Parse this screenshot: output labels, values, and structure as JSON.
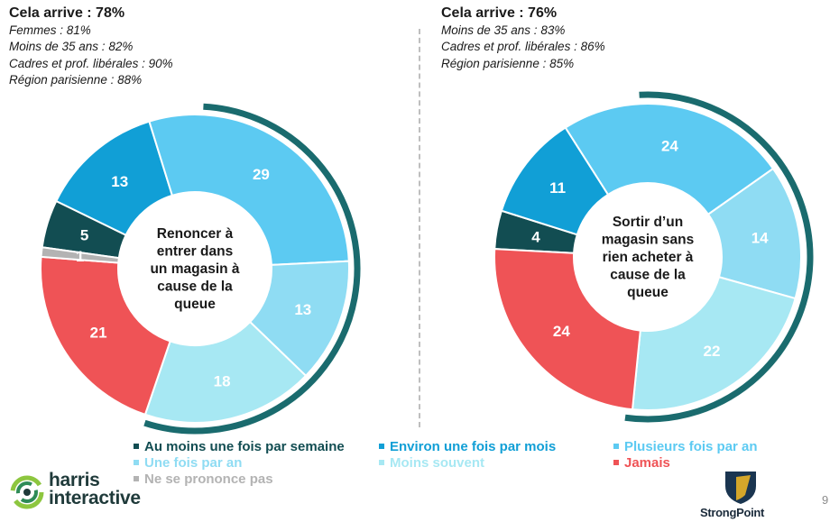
{
  "colors": {
    "au_moins_semaine": "#124d52",
    "environ_mois": "#119fd6",
    "plusieurs_an": "#5ccaf2",
    "une_fois_an": "#8fdcf3",
    "moins_souvent": "#a7e8f3",
    "jamais": "#ef5356",
    "ne_se_prononce_pas": "#b3b3b3",
    "outer_ring": "#1a6b6e"
  },
  "left_summary": {
    "title": "Cela arrive : 78%",
    "items": [
      "Femmes : 81%",
      "Moins de 35 ans : 82%",
      "Cadres et prof. libérales : 90%",
      "Région parisienne : 88%"
    ]
  },
  "right_summary": {
    "title": "Cela arrive : 76%",
    "items": [
      "Moins de 35 ans : 83%",
      "Cadres et prof. libérales : 86%",
      "Région parisienne : 85%"
    ]
  },
  "chart_data": [
    {
      "type": "pie",
      "center_label": [
        "Renoncer à",
        "entrer dans",
        "un magasin à",
        "cause de la",
        "queue"
      ],
      "categories": [
        "Au moins une fois par semaine",
        "Environ une fois par mois",
        "Plusieurs fois par an",
        "Une fois par an",
        "Moins souvent",
        "Jamais",
        "Ne se prononce pas"
      ],
      "values": [
        5,
        13,
        29,
        13,
        18,
        21,
        1
      ]
    },
    {
      "type": "pie",
      "center_label": [
        "Sortir d’un",
        "magasin sans",
        "rien acheter à",
        "cause de la",
        "queue"
      ],
      "categories": [
        "Au moins une fois par semaine",
        "Environ une fois par mois",
        "Plusieurs fois par an",
        "Une fois par an",
        "Moins souvent",
        "Jamais"
      ],
      "values": [
        4,
        11,
        24,
        14,
        22,
        24
      ]
    }
  ],
  "legend": {
    "items": [
      {
        "label": "Au moins une fois par semaine",
        "color": "#124d52"
      },
      {
        "label": "Environ une fois par mois",
        "color": "#119fd6"
      },
      {
        "label": "Plusieurs fois par an",
        "color": "#5ccaf2"
      },
      {
        "label": "Une fois par an",
        "color": "#8fdcf3"
      },
      {
        "label": "Moins souvent",
        "color": "#a7e8f3"
      },
      {
        "label": "Jamais",
        "color": "#ef5356"
      },
      {
        "label": "Ne se prononce pas",
        "color": "#b3b3b3"
      }
    ]
  },
  "footer": {
    "harris_line1": "harris",
    "harris_line2": "interactive",
    "strongpoint": "StrongPoint",
    "page_number": "9"
  }
}
